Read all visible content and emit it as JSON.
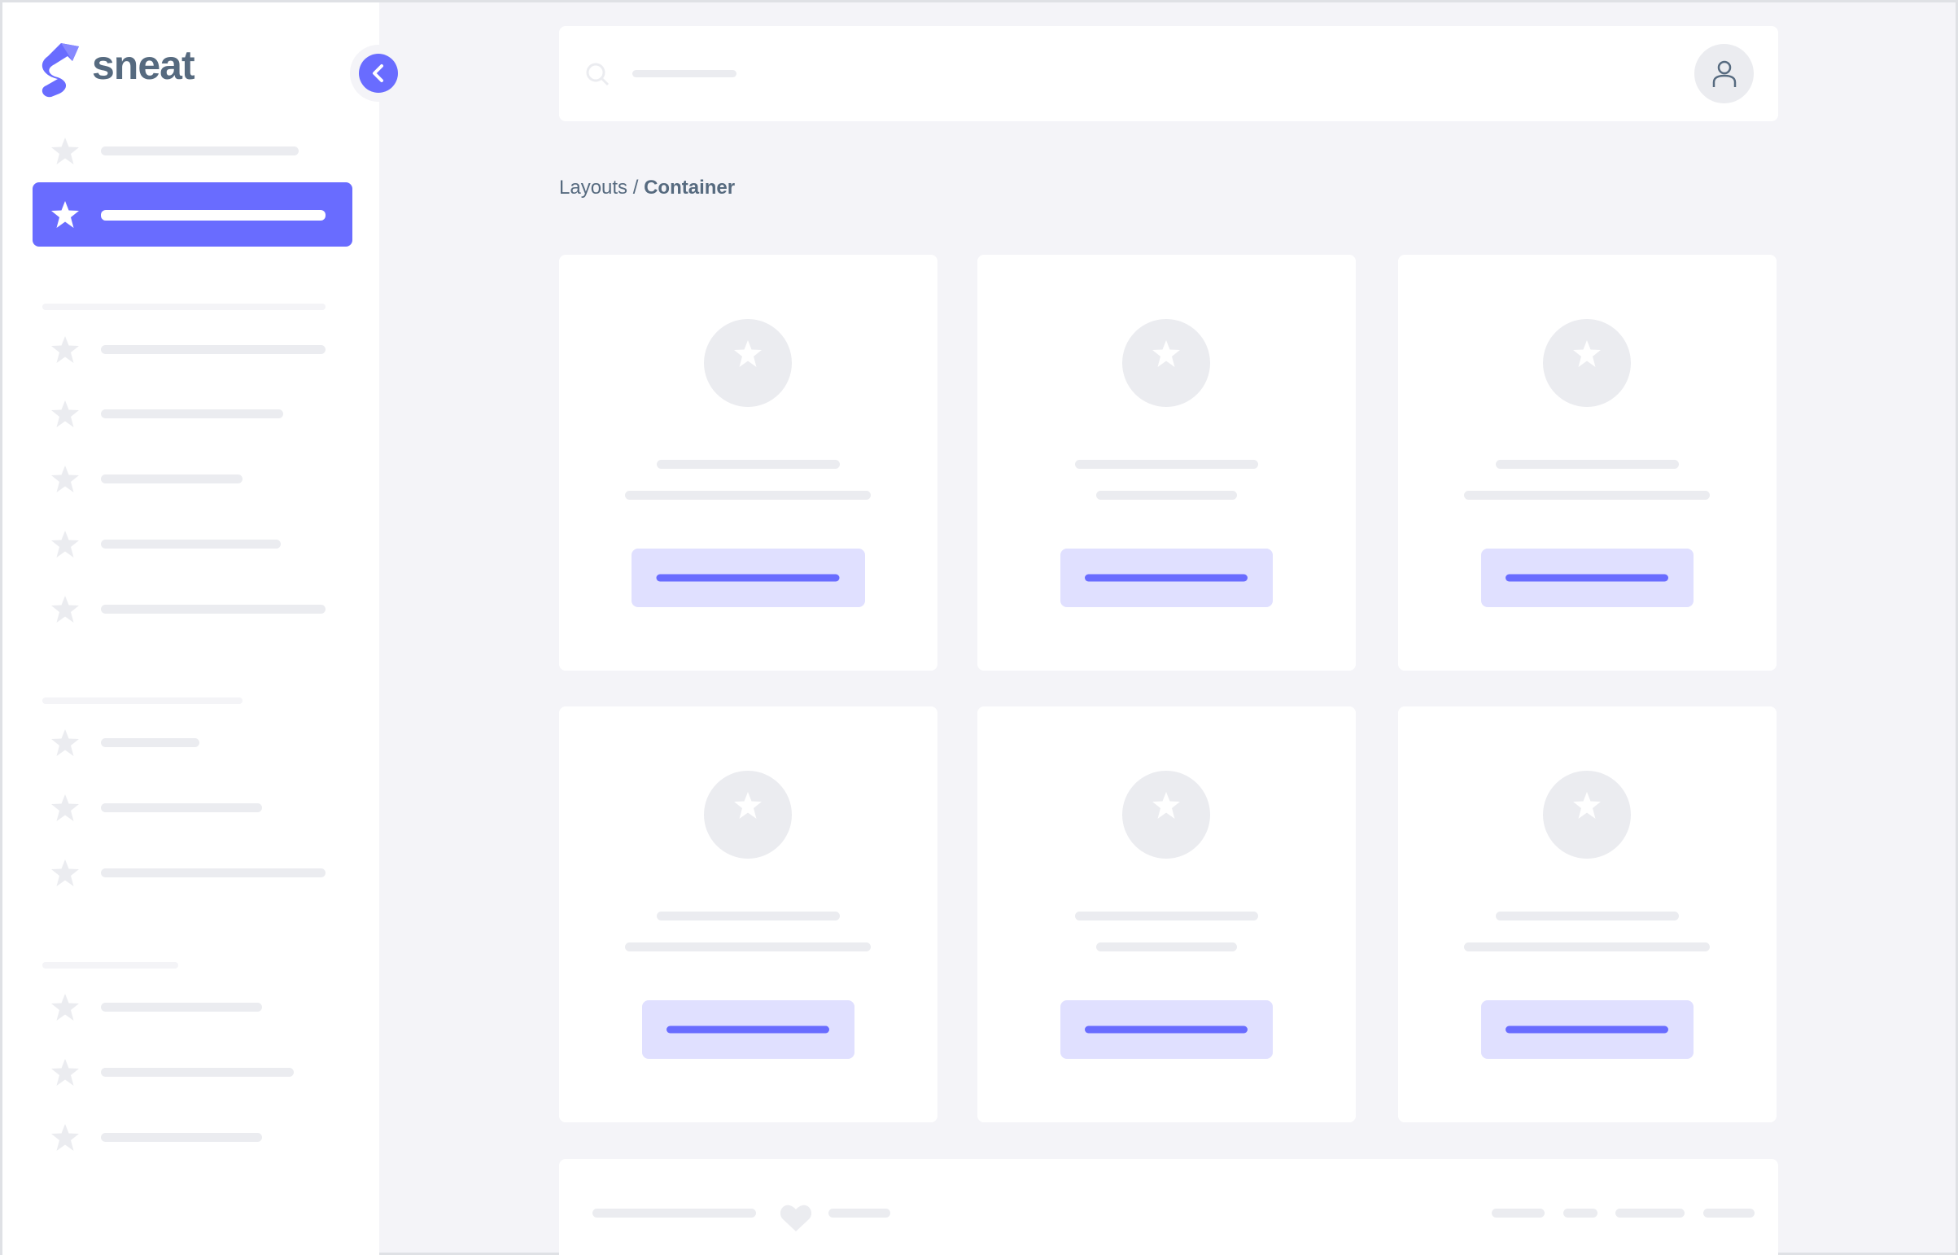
{
  "brand": {
    "name": "sneat",
    "accent": "#696cff",
    "text_color": "#566a7f"
  },
  "breadcrumb": {
    "parent": "Layouts",
    "separator": " / ",
    "current": "Container"
  },
  "icons": {
    "logo": "sneat-logo-icon",
    "collapse": "chevron-left-icon",
    "menu_item": "star-icon",
    "search": "search-icon",
    "user": "user-icon",
    "footer": "heart-icon"
  }
}
